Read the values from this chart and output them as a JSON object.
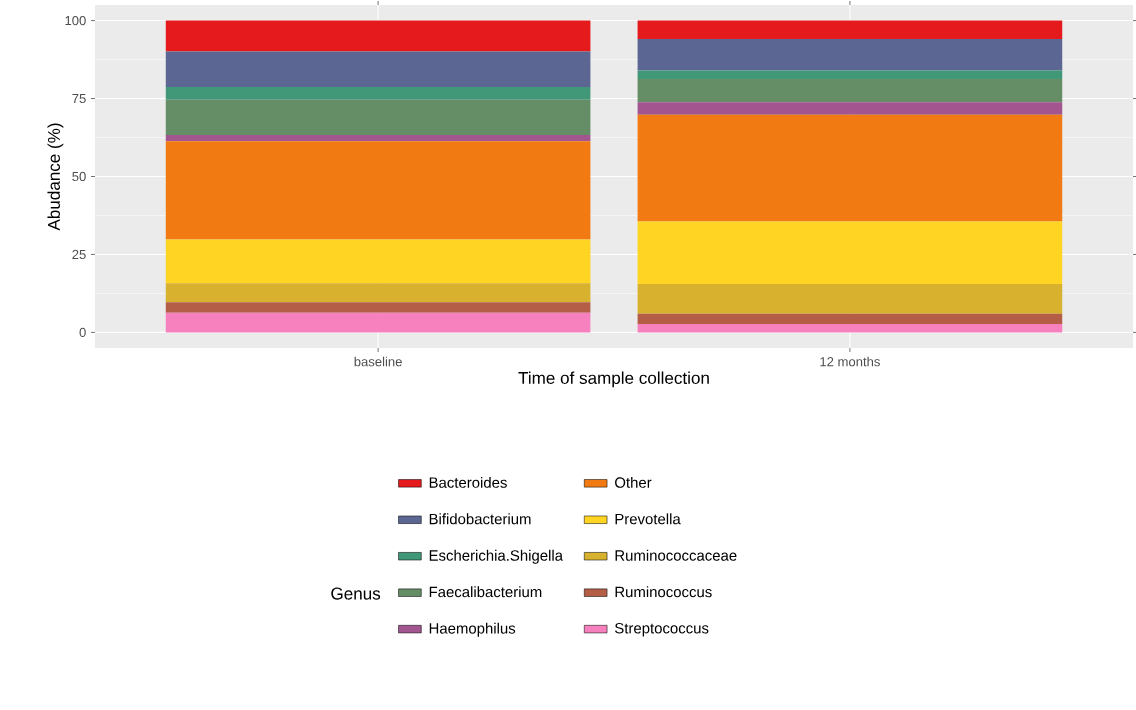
{
  "chart_data": {
    "type": "bar",
    "stacked": true,
    "xlabel": "Time of sample collection",
    "ylabel": "Abudance (%)",
    "legend_title": "Genus",
    "legend": "bottom",
    "grid": true,
    "categories": [
      "baseline",
      "12 months"
    ],
    "ylim": [
      -5,
      105
    ],
    "yticks": [
      0,
      25,
      50,
      75,
      100
    ],
    "series": [
      {
        "name": "Streptococcus",
        "color": "#f781bf",
        "values": [
          6.3,
          2.7
        ]
      },
      {
        "name": "Ruminococcus",
        "color": "#b55e47",
        "values": [
          3.4,
          3.3
        ]
      },
      {
        "name": "Ruminococcaceae",
        "color": "#d8b12f",
        "values": [
          6.1,
          9.5
        ]
      },
      {
        "name": "Prevotella",
        "color": "#ffd422",
        "values": [
          14,
          20.1
        ]
      },
      {
        "name": "Other",
        "color": "#f27a12",
        "values": [
          31.5,
          34.2
        ]
      },
      {
        "name": "Haemophilus",
        "color": "#a2558f",
        "values": [
          2,
          4
        ]
      },
      {
        "name": "Faecalibacterium",
        "color": "#668e66",
        "values": [
          11.3,
          7.5
        ]
      },
      {
        "name": "Escherichia.Shigella",
        "color": "#419878",
        "values": [
          4.1,
          2.7
        ]
      },
      {
        "name": "Bifidobacterium",
        "color": "#5b6792",
        "values": [
          11.4,
          10.1
        ]
      },
      {
        "name": "Bacteroides",
        "color": "#e41a1c",
        "values": [
          9.9,
          5.9
        ]
      }
    ]
  }
}
